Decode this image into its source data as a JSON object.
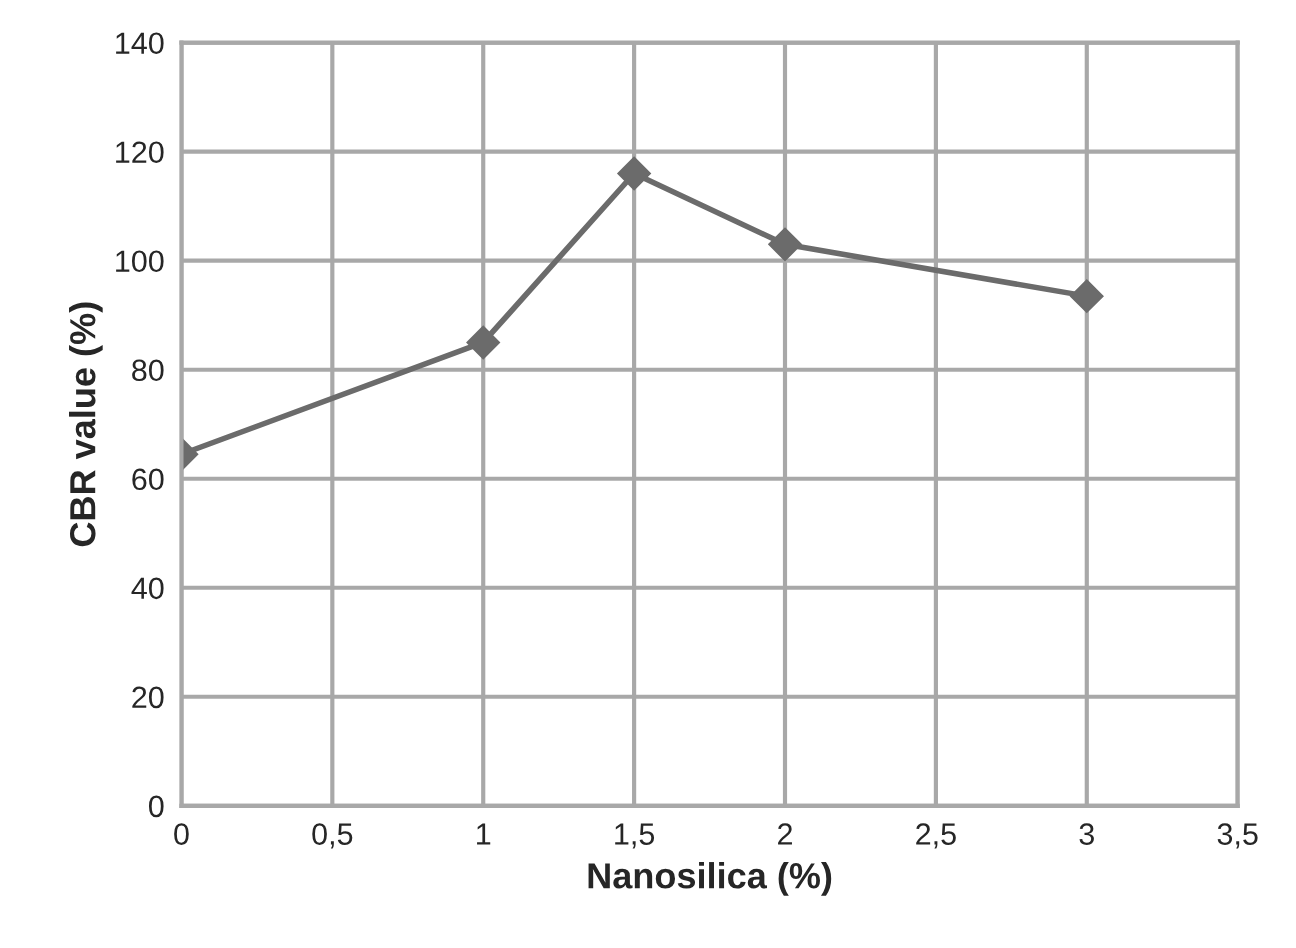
{
  "chart_data": {
    "type": "line",
    "xlabel": "Nanosilica (%)",
    "ylabel": "CBR value (%)",
    "x": [
      0,
      1,
      1.5,
      2,
      3
    ],
    "series": [
      {
        "color": "#6b6b6b",
        "values": [
          64.5,
          85,
          116,
          103,
          93.5
        ]
      }
    ],
    "xlim": [
      0,
      3.5
    ],
    "xticks": [
      0,
      {
        "value": 0.5,
        "label": "0,5"
      },
      1,
      {
        "value": 1.5,
        "label": "1,5"
      },
      2,
      {
        "value": 2.5,
        "label": "2,5"
      },
      3,
      {
        "value": 3.5,
        "label": "3,5"
      }
    ],
    "ylim": [
      0,
      140
    ],
    "yticks": [
      0,
      20,
      40,
      60,
      80,
      100,
      120,
      140
    ],
    "grid": true,
    "marker": "diamond",
    "line_style": "solid",
    "legend": false
  }
}
